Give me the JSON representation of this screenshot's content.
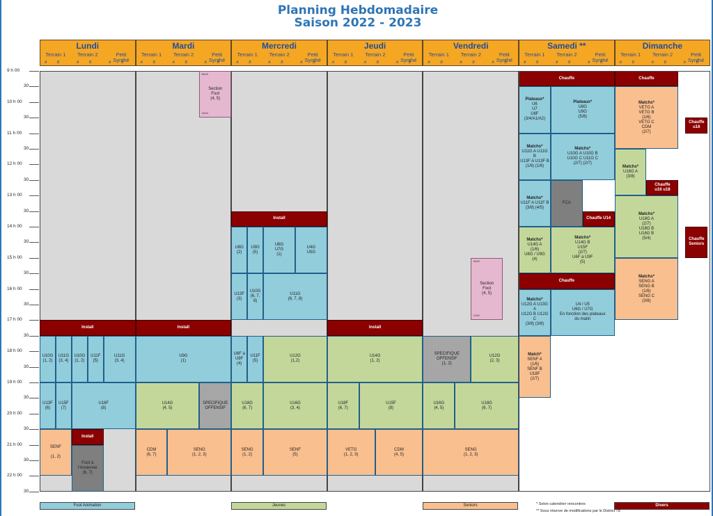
{
  "title": {
    "line1": "Planning Hebdomadaire",
    "line2": "Saison 2022 - 2023"
  },
  "days": [
    "Lundi",
    "Mardi",
    "Mercredi",
    "Jeudi",
    "Vendredi",
    "Samedi **",
    "Dimanche"
  ],
  "subcols": [
    "Terrain 1",
    "Terrain 2",
    "Petit Synthé"
  ],
  "ab": [
    "A",
    "B",
    "A",
    "B",
    "A",
    "B"
  ],
  "hours": [
    "9 h 00",
    "30",
    "10 h 00",
    "30",
    "11 h 00",
    "30",
    "12 h 00",
    "30",
    "13 h 00",
    "30",
    "14 h 00",
    "30",
    "15 h 00",
    "30",
    "16 h 00",
    "30",
    "17 h 00",
    "30",
    "18 h 00",
    "30",
    "19 h 00",
    "30",
    "20 h 00",
    "30",
    "21 h 00",
    "30",
    "22 h 00",
    "30"
  ],
  "blocks": [
    {
      "id": "mar-section",
      "lines": [
        "Section",
        "Foot",
        "(4, 5)"
      ],
      "t1": "09h30",
      "t2": "10h00"
    },
    {
      "id": "ven-section",
      "lines": [
        "Section",
        "Foot",
        "(4, 5)"
      ],
      "t1": "15h00",
      "t2": "17h00"
    },
    {
      "id": "mer-install",
      "lines": [
        "Install"
      ]
    },
    {
      "id": "lun-install",
      "lines": [
        "Install"
      ]
    },
    {
      "id": "mar-install",
      "lines": [
        "Install"
      ]
    },
    {
      "id": "jeu-install",
      "lines": [
        "Install"
      ]
    },
    {
      "id": "lun-install2",
      "lines": [
        "Install"
      ]
    },
    {
      "id": "mer-u8g",
      "lines": [
        "U8G",
        "(2)"
      ]
    },
    {
      "id": "mer-u9g",
      "lines": [
        "U9G",
        "(5)"
      ]
    },
    {
      "id": "mer-u6g",
      "lines": [
        "U6G",
        "U7G",
        "(1)"
      ]
    },
    {
      "id": "mer-u4g",
      "lines": [
        "U4G",
        "U5G"
      ]
    },
    {
      "id": "mer-u13f",
      "lines": [
        "U13F",
        "(3)"
      ]
    },
    {
      "id": "mer-u10g",
      "lines": [
        "U10G",
        "(6, 7,",
        "8)"
      ]
    },
    {
      "id": "mer-u11g",
      "lines": [
        "U11G",
        "(6, 7, 8)"
      ]
    },
    {
      "id": "lun-u10g1",
      "lines": [
        "U10G",
        "(1, 2)"
      ]
    },
    {
      "id": "lun-u11g1",
      "lines": [
        "U11G",
        "(3, 4)"
      ]
    },
    {
      "id": "lun-u10g2",
      "lines": [
        "U10G",
        "(1, 2)"
      ]
    },
    {
      "id": "lun-u11f",
      "lines": [
        "U11F",
        "(5)"
      ]
    },
    {
      "id": "lun-u11g2",
      "lines": [
        "U11G",
        "(3, 4)"
      ]
    },
    {
      "id": "mar-u9g",
      "lines": [
        "U9G",
        "(1)"
      ]
    },
    {
      "id": "mer-u6f",
      "lines": [
        "U6F à",
        "U9F",
        "(4)"
      ]
    },
    {
      "id": "mer-u11f",
      "lines": [
        "U11F",
        "(5)"
      ]
    },
    {
      "id": "mer-u12g",
      "lines": [
        "U12G",
        "(1,2)"
      ]
    },
    {
      "id": "jeu-u14g",
      "lines": [
        "U14G",
        "(1, 2)"
      ]
    },
    {
      "id": "ven-spec",
      "lines": [
        "SPECIFIQUE OFFENSIF",
        "(1, 2)"
      ]
    },
    {
      "id": "ven-u12g",
      "lines": [
        "U12G",
        "(2, 3)"
      ]
    },
    {
      "id": "lun-u13f",
      "lines": [
        "U13F",
        "(6)"
      ]
    },
    {
      "id": "lun-u15f",
      "lines": [
        "U15F",
        "(7)"
      ]
    },
    {
      "id": "lun-u18f",
      "lines": [
        "U18F",
        "(8)"
      ]
    },
    {
      "id": "mar-u14g",
      "lines": [
        "U14G",
        "(4, 5)"
      ]
    },
    {
      "id": "mar-spec",
      "lines": [
        "SPECIFIQUE",
        "OFFENSIF"
      ]
    },
    {
      "id": "mer-u18g",
      "lines": [
        "U18G",
        "(6, 7)"
      ]
    },
    {
      "id": "mer-u16g",
      "lines": [
        "U16G",
        "(3, 4)"
      ]
    },
    {
      "id": "jeu-u18f",
      "lines": [
        "U18F",
        "(6, 7)"
      ]
    },
    {
      "id": "jeu-u15f",
      "lines": [
        "U15F",
        "(8)"
      ]
    },
    {
      "id": "ven-u16g",
      "lines": [
        "U16G",
        "(4, 5)"
      ]
    },
    {
      "id": "ven-u18g",
      "lines": [
        "U18G",
        "(6, 7)"
      ]
    },
    {
      "id": "lun-senf",
      "lines": [
        "SENF",
        "",
        "(1, 2)"
      ]
    },
    {
      "id": "lun-foot",
      "lines": [
        "Foot à",
        "l'Ancienne",
        "(6, 7)"
      ]
    },
    {
      "id": "mar-cdm",
      "lines": [
        "CDM",
        "(6, 7)"
      ]
    },
    {
      "id": "mar-seng",
      "lines": [
        "SENG",
        "(1, 2, 3)"
      ]
    },
    {
      "id": "mer-seng",
      "lines": [
        "SENG",
        "(1, 2)"
      ]
    },
    {
      "id": "mer-senf",
      "lines": [
        "SENF",
        "(5)"
      ]
    },
    {
      "id": "jeu-vetg",
      "lines": [
        "VETG",
        "(1, 2, 3)"
      ]
    },
    {
      "id": "jeu-cdm",
      "lines": [
        "CDM",
        "(4, 5)"
      ]
    },
    {
      "id": "ven-seng",
      "lines": [
        "SENG",
        "(1, 2, 3)"
      ]
    },
    {
      "id": "sam-chauffe1",
      "lines": [
        "Chauffe"
      ]
    },
    {
      "id": "sam-plat1",
      "lines": [
        "Plateaux*",
        "U6",
        "U7",
        "U6F",
        "(3/4/A1/A2)"
      ]
    },
    {
      "id": "sam-plat2",
      "lines": [
        "Plateaux*",
        "U8G",
        "U9G",
        "(5/8)"
      ]
    },
    {
      "id": "sam-match1",
      "lines": [
        "Matchs*",
        "U11G A  U11G B",
        "U13F A  U13F B",
        "(1/6)  (1/6)"
      ]
    },
    {
      "id": "sam-match2",
      "lines": [
        "Matchs*",
        "U10G A  U10G B",
        "U10G C  U11G C",
        "(2/7)  (2/7)"
      ]
    },
    {
      "id": "sam-match3",
      "lines": [
        "Matchs*",
        "U11F A  U11F B",
        "(3/8)  (4/5)"
      ]
    },
    {
      "id": "sam-fca",
      "lines": [
        "FCA"
      ]
    },
    {
      "id": "sam-chauffe14",
      "lines": [
        "Chauffe U14"
      ]
    },
    {
      "id": "sam-match4",
      "lines": [
        "Matchs*",
        "U14G A",
        "(1/6)",
        "U8G / U9G",
        "(4)"
      ]
    },
    {
      "id": "sam-match5",
      "lines": [
        "Matchs*",
        "U14G B",
        "U15F",
        "(2/7)",
        "U6F à U9F",
        "(5)"
      ]
    },
    {
      "id": "sam-chauffe2",
      "lines": [
        "Chauffe"
      ]
    },
    {
      "id": "sam-match6",
      "lines": [
        "Matchs*",
        "U12G A  U13G A",
        "U12G B  U12G C",
        "(3/8)  (3/8)"
      ]
    },
    {
      "id": "sam-u4",
      "lines": [
        "U4 / U5",
        "U6G / U7G",
        "En fonction des plateaux",
        "du matin"
      ]
    },
    {
      "id": "sam-match7",
      "lines": [
        "Match*",
        "SENF A",
        "(1/6)",
        "SENF B",
        "U18F",
        "(2/7)"
      ]
    },
    {
      "id": "dim-chauffe",
      "lines": [
        "Chauffe"
      ]
    },
    {
      "id": "dim-matchs1",
      "lines": [
        "Matchs*",
        "VETG A",
        "VETG B",
        "(1/6)",
        "VETG C",
        "CDM",
        "(2/7)"
      ]
    },
    {
      "id": "dim-chauffe16",
      "lines": [
        "Chauffe",
        "u16"
      ]
    },
    {
      "id": "dim-match2",
      "lines": [
        "Matchs*",
        "U16G A",
        "(3/8)"
      ]
    },
    {
      "id": "dim-chauffe1618",
      "lines": [
        "Chauffe",
        "u16 u18"
      ]
    },
    {
      "id": "dim-match3",
      "lines": [
        "Matchs*",
        "U18G A",
        "(2/7)",
        "U18G B",
        "U16G B",
        "(5/4)"
      ]
    },
    {
      "id": "dim-chauffesen",
      "lines": [
        "Chauffe",
        "Seniors"
      ]
    },
    {
      "id": "dim-match4",
      "lines": [
        "Matchs*",
        "SENG A",
        "SENG B",
        "(1/6)",
        "SENG C",
        "(3/8)"
      ]
    }
  ],
  "legend": [
    {
      "label": "Foot Animation",
      "color": "#92cddc"
    },
    {
      "label": "Jeunes",
      "color": "#c4d79b"
    },
    {
      "label": "Seniors",
      "color": "#fabf8f"
    },
    {
      "label": "Divers",
      "color": "#8b0000"
    }
  ],
  "notes": [
    "* Selon calendrier rencontres",
    "** Sous réserve de modifications par le District 78"
  ]
}
